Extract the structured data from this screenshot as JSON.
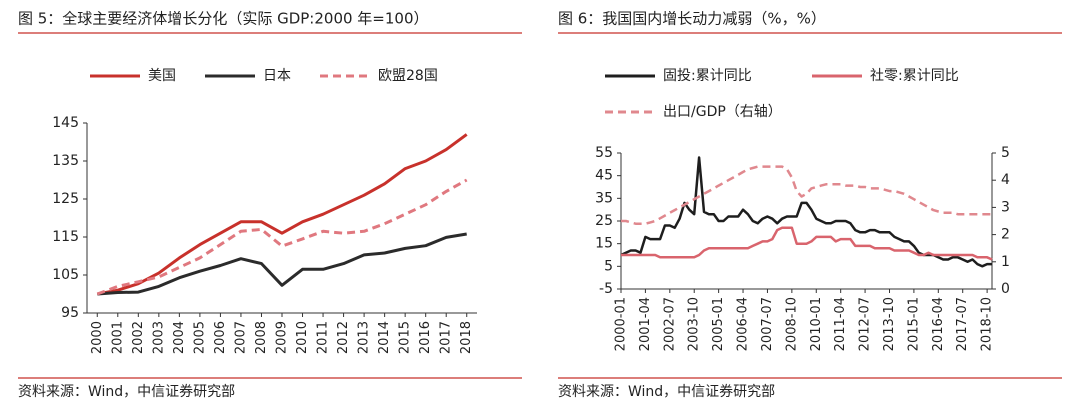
{
  "chart_data": [
    {
      "type": "line",
      "title": "图 5：全球主要经济体增长分化（实际 GDP:2000 年=100）",
      "source": "资料来源：Wind，中信证券研究部",
      "categories": [
        "2000",
        "2001",
        "2002",
        "2003",
        "2004",
        "2005",
        "2006",
        "2007",
        "2008",
        "2009",
        "2010",
        "2011",
        "2012",
        "2013",
        "2014",
        "2015",
        "2016",
        "2017",
        "2018"
      ],
      "series": [
        {
          "name": "美国",
          "color": "#c8312b",
          "style": "solid",
          "values": [
            100,
            101,
            102.7,
            105.5,
            109.5,
            113,
            116,
            119,
            119,
            116,
            119,
            121,
            123.5,
            126,
            129,
            133,
            135,
            138,
            142
          ]
        },
        {
          "name": "日本",
          "color": "#2b2b2b",
          "style": "solid",
          "values": [
            100,
            100.4,
            100.5,
            102,
            104.3,
            106,
            107.5,
            109.3,
            108,
            102.3,
            106.5,
            106.5,
            108,
            110.3,
            110.8,
            112,
            112.7,
            114.9,
            115.8
          ]
        },
        {
          "name": "欧盟28国",
          "color": "#e0787f",
          "style": "dashed",
          "values": [
            100,
            102,
            103.2,
            104.5,
            107,
            109.5,
            113,
            116.5,
            117,
            112.6,
            114.5,
            116.5,
            116,
            116.5,
            118.5,
            121,
            123.5,
            127,
            130
          ]
        }
      ],
      "ylim": [
        95,
        145
      ],
      "yticks": [
        95,
        105,
        115,
        125,
        135,
        145
      ],
      "grid": false
    },
    {
      "type": "line",
      "title": "图 6：我国国内增长动力减弱（%，%）",
      "source": "资料来源：Wind，中信证券研究部",
      "categories": [
        "2000-01",
        null,
        null,
        null,
        null,
        "2001-04",
        null,
        null,
        null,
        null,
        "2002-07",
        null,
        null,
        null,
        null,
        "2003-10",
        null,
        null,
        null,
        null,
        "2005-01",
        null,
        null,
        null,
        null,
        "2006-04",
        null,
        null,
        null,
        null,
        "2007-07",
        null,
        null,
        null,
        null,
        "2008-10",
        null,
        null,
        null,
        null,
        "2010-01",
        null,
        null,
        null,
        null,
        "2011-04",
        null,
        null,
        null,
        null,
        "2012-07",
        null,
        null,
        null,
        null,
        "2013-10",
        null,
        null,
        null,
        null,
        "2015-01",
        null,
        null,
        null,
        null,
        "2016-04",
        null,
        null,
        null,
        null,
        "2017-07",
        null,
        null,
        null,
        null,
        "2018-10",
        null
      ],
      "series": [
        {
          "name": "固投:累计同比",
          "color": "#1e1e1e",
          "style": "solid",
          "values": [
            10,
            11,
            12,
            12,
            11,
            18,
            17,
            17,
            17,
            23,
            23,
            22,
            26,
            33,
            30,
            28,
            53,
            29,
            28,
            28,
            25,
            25,
            27,
            27,
            27,
            30,
            28,
            25,
            24,
            26,
            27,
            26,
            24,
            26,
            27,
            27,
            27,
            33,
            33,
            30,
            26,
            25,
            24,
            24,
            25,
            25,
            25,
            24,
            21,
            20,
            20,
            21,
            21,
            20,
            20,
            20,
            18,
            17,
            16,
            16,
            14,
            11,
            10,
            10,
            10,
            9,
            8,
            8,
            9,
            9,
            8,
            7,
            8,
            6,
            5,
            6,
            6
          ]
        },
        {
          "name": "社零:累计同比",
          "color": "#d9646d",
          "style": "solid",
          "values": [
            10,
            10,
            10,
            10,
            10,
            10,
            10,
            10,
            9,
            9,
            9,
            9,
            9,
            9,
            9,
            9,
            10,
            12,
            13,
            13,
            13,
            13,
            13,
            13,
            13,
            13,
            13,
            14,
            15,
            16,
            16,
            17,
            21,
            22,
            22,
            22,
            15,
            15,
            15,
            16,
            18,
            18,
            18,
            18,
            16,
            17,
            17,
            17,
            14,
            14,
            14,
            14,
            13,
            13,
            13,
            13,
            12,
            12,
            12,
            12,
            11,
            10,
            10,
            11,
            10,
            10,
            10,
            10,
            10,
            10,
            10,
            10,
            10,
            9,
            9,
            9,
            8
          ]
        },
        {
          "name": "出口/GDP（右轴）",
          "color": "#e0888e",
          "style": "dashed",
          "axis": "y2",
          "values": [
            2.5,
            2.5,
            2.45,
            2.4,
            2.4,
            2.4,
            2.45,
            2.5,
            2.6,
            2.7,
            2.8,
            2.9,
            3.0,
            3.1,
            3.2,
            3.3,
            3.4,
            3.5,
            3.6,
            3.7,
            3.8,
            3.9,
            4.0,
            4.1,
            4.2,
            4.3,
            4.4,
            4.45,
            4.5,
            4.5,
            4.5,
            4.5,
            4.5,
            4.5,
            4.4,
            4.1,
            3.6,
            3.4,
            3.5,
            3.7,
            3.75,
            3.8,
            3.85,
            3.85,
            3.85,
            3.85,
            3.8,
            3.8,
            3.8,
            3.75,
            3.75,
            3.7,
            3.7,
            3.7,
            3.65,
            3.6,
            3.6,
            3.55,
            3.5,
            3.4,
            3.3,
            3.2,
            3.1,
            3.0,
            2.9,
            2.85,
            2.8,
            2.8,
            2.8,
            2.75,
            2.75,
            2.75,
            2.75,
            2.75,
            2.75,
            2.75,
            2.75
          ]
        }
      ],
      "ylim": [
        -5,
        55
      ],
      "yticks": [
        -5,
        5,
        15,
        25,
        35,
        45,
        55
      ],
      "y2lim": [
        0,
        5
      ],
      "y2ticks": [
        0,
        1,
        2,
        3,
        4,
        5
      ],
      "grid": false
    }
  ]
}
